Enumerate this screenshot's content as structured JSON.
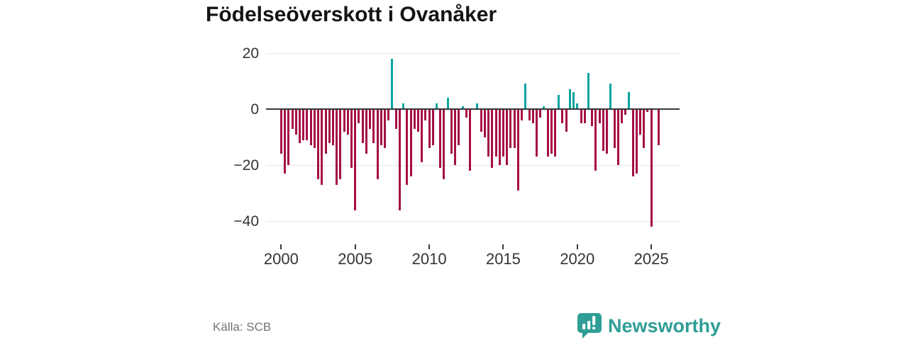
{
  "title": "Födelseöverskott i Ovanåker",
  "footer": {
    "source": "Källa: SCB",
    "brand": "Newsworthy"
  },
  "colors": {
    "negative_bar": "#a50d45",
    "positive_bar": "#0aa4a0",
    "brand_teal": "#2f9e96",
    "grid": "#e5e5e5",
    "axis": "#383838",
    "tick_text": "#333333",
    "title_text": "#141414",
    "source_text": "#70757a"
  },
  "chart_data": {
    "type": "bar",
    "title": "Födelseöverskott i Ovanåker",
    "frequency": "quarterly",
    "start": "2000 Q1",
    "end": "2025 Q3",
    "xlabel": "",
    "ylabel": "",
    "xticks": [
      2000,
      2005,
      2010,
      2015,
      2020,
      2025
    ],
    "yticks": [
      20,
      0,
      -20,
      -40
    ],
    "ylim": [
      -45,
      22
    ],
    "grid": true,
    "legend": false,
    "source": "Källa: SCB",
    "values": [
      -16,
      -23,
      -20,
      -7,
      -9,
      -12,
      -11,
      -11,
      -13,
      -14,
      -25,
      -27,
      -16,
      -12,
      -13,
      -27,
      -25,
      -8,
      -9,
      -21,
      -36,
      -5,
      -12,
      -16,
      -7,
      -12,
      -25,
      -13,
      -14,
      -4,
      18,
      -7,
      -36,
      2,
      -27,
      -24,
      -7,
      -8,
      -19,
      -4,
      -14,
      -13,
      2,
      -21,
      -25,
      4,
      -16,
      -20,
      -13,
      1,
      -3,
      -22,
      0,
      2,
      -8,
      -10,
      -17,
      -21,
      -17,
      -20,
      -17,
      -20,
      -14,
      -14,
      -29,
      -4,
      9,
      -4,
      -5,
      -17,
      -3,
      1,
      -17,
      -16,
      -17,
      5,
      -5,
      -8,
      7,
      6,
      2,
      -5,
      -5,
      13,
      -6,
      -22,
      -5,
      -15,
      -16,
      9,
      -14,
      -20,
      -5,
      -2,
      6,
      -24,
      -23,
      -9,
      -14,
      -1,
      -42,
      0,
      -13
    ]
  }
}
